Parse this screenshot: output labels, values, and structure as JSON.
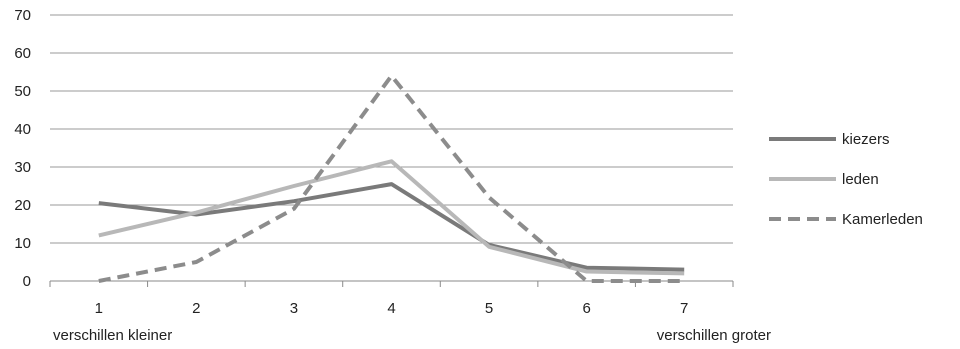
{
  "chart_data": {
    "type": "line",
    "categories": [
      "1",
      "2",
      "3",
      "4",
      "5",
      "6",
      "7"
    ],
    "ylim": [
      0,
      70
    ],
    "yticks": [
      0,
      10,
      20,
      30,
      40,
      50,
      60,
      70
    ],
    "grid": true,
    "legend_position": "right",
    "x_notes": {
      "left": "verschillen kleiner",
      "right": "verschillen groter"
    },
    "series": [
      {
        "name": "kiezers",
        "values": [
          20.5,
          17.5,
          21,
          25.5,
          9.5,
          3.5,
          3
        ],
        "color": "#7a7a7a",
        "dash": "solid"
      },
      {
        "name": "leden",
        "values": [
          12,
          18,
          25,
          31.5,
          9,
          2.5,
          2
        ],
        "color": "#b8b8b8",
        "dash": "solid"
      },
      {
        "name": "Kamerleden",
        "values": [
          0,
          5,
          19,
          54,
          22,
          0,
          0
        ],
        "color": "#8c8c8c",
        "dash": "dashed"
      }
    ]
  }
}
